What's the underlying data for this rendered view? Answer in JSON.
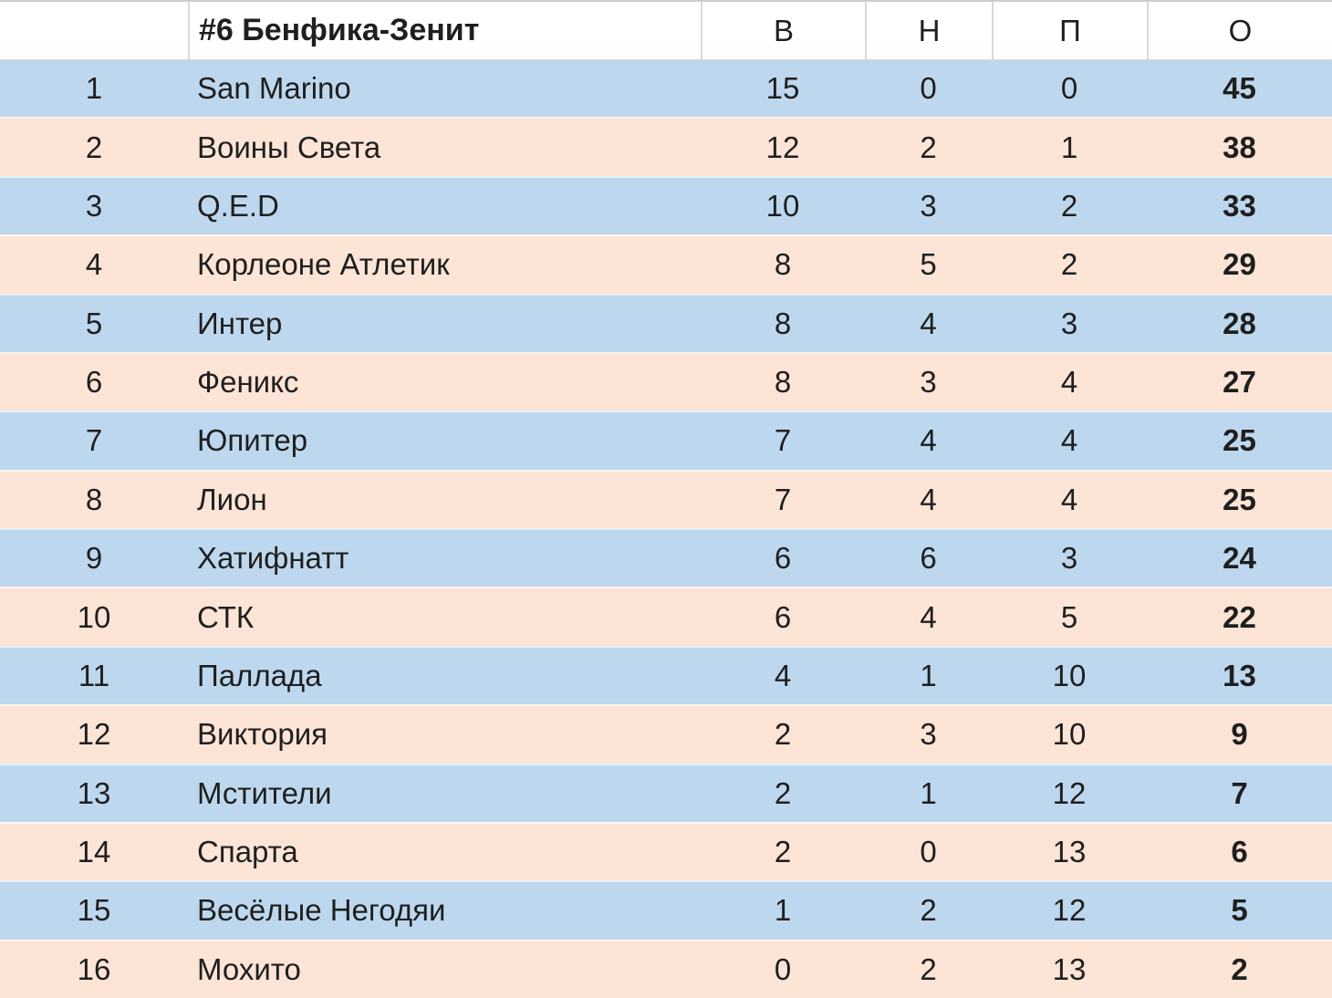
{
  "chart_data": {
    "type": "table",
    "title": "#6 Бенфика-Зенит",
    "columns": [
      "",
      "#6 Бенфика-Зенит",
      "В",
      "Н",
      "П",
      "О"
    ],
    "column_meanings": [
      "rank",
      "team",
      "wins",
      "draws",
      "losses",
      "points"
    ],
    "rows": [
      [
        1,
        "San Marino",
        15,
        0,
        0,
        45
      ],
      [
        2,
        "Воины Света",
        12,
        2,
        1,
        38
      ],
      [
        3,
        "Q.E.D",
        10,
        3,
        2,
        33
      ],
      [
        4,
        "Корлеоне Атлетик",
        8,
        5,
        2,
        29
      ],
      [
        5,
        "Интер",
        8,
        4,
        3,
        28
      ],
      [
        6,
        "Феникс",
        8,
        3,
        4,
        27
      ],
      [
        7,
        "Юпитер",
        7,
        4,
        4,
        25
      ],
      [
        8,
        "Лион",
        7,
        4,
        4,
        25
      ],
      [
        9,
        "Хатифнатт",
        6,
        6,
        3,
        24
      ],
      [
        10,
        "СТК",
        6,
        4,
        5,
        22
      ],
      [
        11,
        "Паллада",
        4,
        1,
        10,
        13
      ],
      [
        12,
        "Виктория",
        2,
        3,
        10,
        9
      ],
      [
        13,
        "Мстители",
        2,
        1,
        12,
        7
      ],
      [
        14,
        "Спарта",
        2,
        0,
        13,
        6
      ],
      [
        15,
        "Весёлые Негодяи",
        1,
        2,
        12,
        5
      ],
      [
        16,
        "Мохито",
        0,
        2,
        13,
        2
      ]
    ],
    "layout": {
      "grid": "alternating-row-fill",
      "bold_columns": [
        "points"
      ],
      "header_position": "top"
    }
  },
  "colors": {
    "row_blue": "#BDD7EE",
    "row_peach": "#FCE4D6",
    "header_bg": "#FFFFFF",
    "border_gray": "#D9D9D9",
    "border_top_gray": "#CDCDCD",
    "text": "#1F1F1F"
  }
}
